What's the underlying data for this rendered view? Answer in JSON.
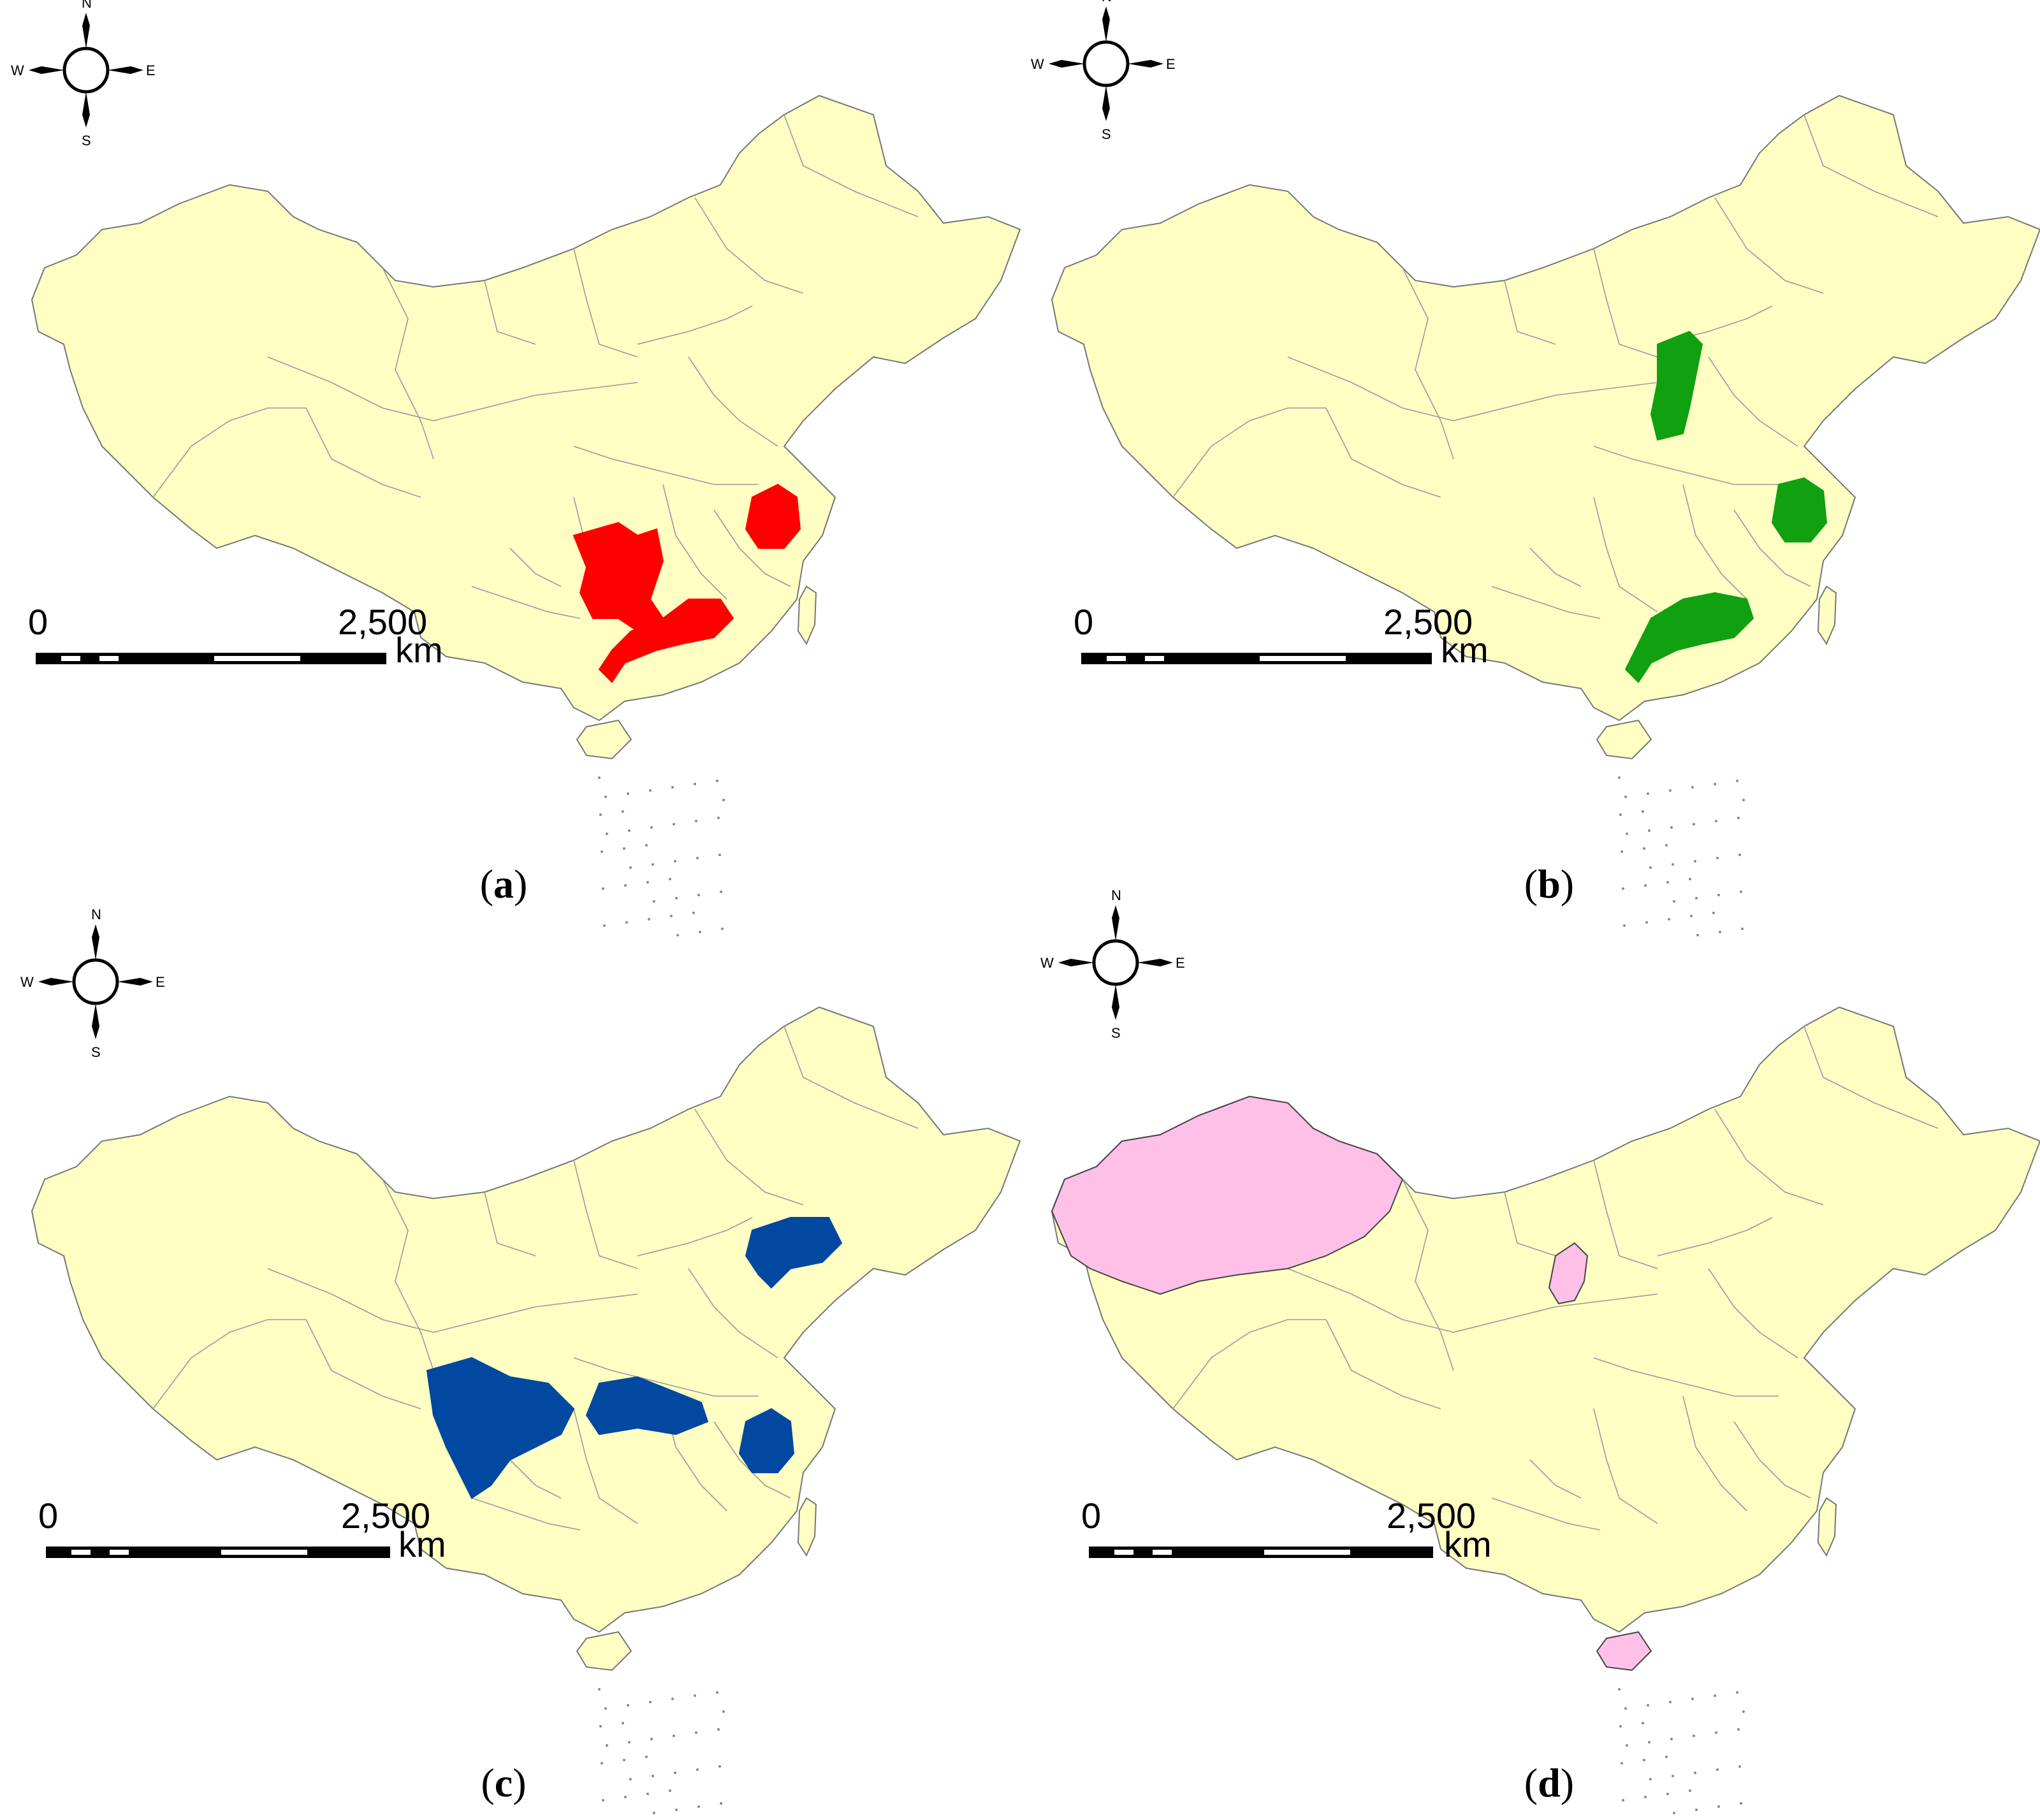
{
  "colors": {
    "land": "#ffffc4",
    "border": "#9a9a9a",
    "outline": "#777777",
    "panel_a": "#ff0000",
    "panel_b": "#10a010",
    "panel_c": "#0048a0",
    "panel_d": "#ffc0e8"
  },
  "compass": {
    "n": "N",
    "s": "S",
    "e": "E",
    "w": "W"
  },
  "scale_bar": {
    "zero": "0",
    "distance": "2,500",
    "unit": "km"
  },
  "panels": [
    {
      "id": "a",
      "caption_open": "(",
      "caption_letter": "a",
      "caption_close": ")",
      "highlighted": [
        "Guangxi",
        "Guangdong",
        "Zhejiang"
      ]
    },
    {
      "id": "b",
      "caption_open": "(",
      "caption_letter": "b",
      "caption_close": ")",
      "highlighted": [
        "Shanxi",
        "Zhejiang",
        "Guangdong"
      ]
    },
    {
      "id": "c",
      "caption_open": "(",
      "caption_letter": "c",
      "caption_close": ")",
      "highlighted": [
        "Sichuan",
        "Hubei",
        "Zhejiang",
        "Liaoning"
      ]
    },
    {
      "id": "d",
      "caption_open": "(",
      "caption_letter": "d",
      "caption_close": ")",
      "highlighted": [
        "Xinjiang",
        "Ningxia",
        "Hainan"
      ]
    }
  ]
}
